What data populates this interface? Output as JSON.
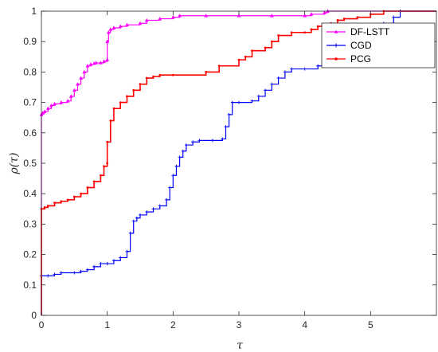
{
  "chart_data": {
    "type": "line",
    "title": "",
    "xlabel": "τ",
    "ylabel": "ρ(τ)",
    "xlim": [
      0,
      6
    ],
    "ylim": [
      0,
      1
    ],
    "x_ticks": [
      "0",
      "1",
      "2",
      "3",
      "4",
      "5"
    ],
    "y_ticks": [
      "0",
      "0.1",
      "0.2",
      "0.3",
      "0.4",
      "0.5",
      "0.6",
      "0.7",
      "0.8",
      "0.9",
      "1"
    ],
    "grid": false,
    "legend_position": "top-right",
    "series": [
      {
        "name": "DF-LSTT",
        "color": "#ff00ff",
        "marker": "triangle",
        "x": [
          0,
          0,
          0.02,
          0.05,
          0.1,
          0.15,
          0.2,
          0.3,
          0.4,
          0.45,
          0.5,
          0.55,
          0.6,
          0.65,
          0.7,
          0.75,
          0.8,
          0.83,
          0.9,
          0.95,
          1.0,
          1.0,
          1.02,
          1.05,
          1.1,
          1.2,
          1.3,
          1.5,
          1.6,
          1.8,
          2.0,
          2.1,
          2.5,
          3.0,
          3.5,
          4.0,
          4.1,
          4.3,
          4.35,
          6.0
        ],
        "y": [
          0,
          0.66,
          0.665,
          0.67,
          0.68,
          0.69,
          0.695,
          0.7,
          0.705,
          0.72,
          0.74,
          0.76,
          0.78,
          0.8,
          0.82,
          0.825,
          0.828,
          0.83,
          0.83,
          0.835,
          0.84,
          0.9,
          0.93,
          0.94,
          0.945,
          0.95,
          0.955,
          0.96,
          0.97,
          0.975,
          0.98,
          0.985,
          0.985,
          0.985,
          0.985,
          0.985,
          0.99,
          0.995,
          1.0,
          1.0
        ]
      },
      {
        "name": "CGD",
        "color": "#0000ff",
        "marker": "plus",
        "x": [
          0,
          0,
          0.1,
          0.2,
          0.3,
          0.5,
          0.6,
          0.7,
          0.8,
          0.9,
          1.0,
          1.1,
          1.2,
          1.3,
          1.35,
          1.4,
          1.45,
          1.5,
          1.6,
          1.7,
          1.8,
          1.9,
          1.95,
          2.0,
          2.05,
          2.1,
          2.15,
          2.2,
          2.3,
          2.4,
          2.6,
          2.75,
          2.8,
          2.85,
          2.9,
          3.0,
          3.2,
          3.3,
          3.4,
          3.5,
          3.6,
          3.7,
          3.8,
          4.0,
          4.2,
          4.4,
          4.6,
          4.8,
          5.0,
          5.2,
          5.35,
          5.45,
          6.0
        ],
        "y": [
          0,
          0.13,
          0.13,
          0.135,
          0.14,
          0.14,
          0.145,
          0.15,
          0.16,
          0.17,
          0.17,
          0.18,
          0.19,
          0.21,
          0.27,
          0.31,
          0.32,
          0.33,
          0.34,
          0.35,
          0.36,
          0.38,
          0.42,
          0.46,
          0.49,
          0.52,
          0.54,
          0.56,
          0.57,
          0.575,
          0.575,
          0.58,
          0.62,
          0.66,
          0.7,
          0.7,
          0.705,
          0.72,
          0.74,
          0.76,
          0.78,
          0.8,
          0.81,
          0.81,
          0.82,
          0.84,
          0.9,
          0.945,
          0.95,
          0.96,
          0.98,
          1.0,
          1.0
        ]
      },
      {
        "name": "PCG",
        "color": "#ff0000",
        "marker": "dot",
        "x": [
          0,
          0,
          0.05,
          0.1,
          0.2,
          0.3,
          0.4,
          0.5,
          0.6,
          0.7,
          0.8,
          0.9,
          0.95,
          1.0,
          1.0,
          1.05,
          1.1,
          1.2,
          1.3,
          1.4,
          1.5,
          1.6,
          1.7,
          1.8,
          2.0,
          2.5,
          2.7,
          3.0,
          3.1,
          3.2,
          3.4,
          3.5,
          3.6,
          3.8,
          4.0,
          4.1,
          4.2,
          4.4,
          4.5,
          4.6,
          4.8,
          5.0,
          5.2,
          6.0
        ],
        "y": [
          0,
          0.35,
          0.355,
          0.36,
          0.37,
          0.375,
          0.38,
          0.39,
          0.4,
          0.42,
          0.44,
          0.46,
          0.49,
          0.5,
          0.57,
          0.64,
          0.68,
          0.7,
          0.72,
          0.74,
          0.76,
          0.78,
          0.785,
          0.79,
          0.79,
          0.8,
          0.82,
          0.84,
          0.85,
          0.87,
          0.88,
          0.9,
          0.92,
          0.93,
          0.93,
          0.94,
          0.95,
          0.96,
          0.97,
          0.975,
          0.98,
          0.99,
          1.0,
          1.0
        ]
      }
    ]
  }
}
